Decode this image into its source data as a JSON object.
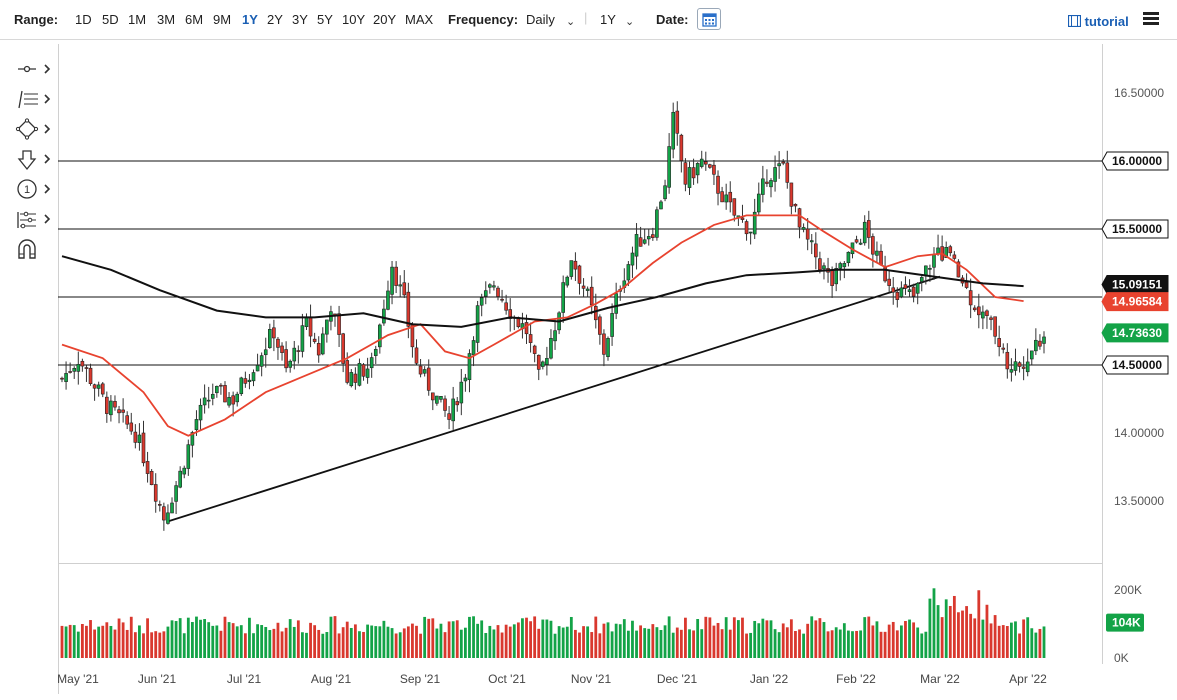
{
  "toolbar": {
    "range_label": "Range:",
    "ranges": [
      "1D",
      "5D",
      "1M",
      "3M",
      "6M",
      "9M",
      "1Y",
      "2Y",
      "3Y",
      "5Y",
      "10Y",
      "20Y",
      "MAX"
    ],
    "active_range": "1Y",
    "frequency_label": "Frequency:",
    "frequency_value": "Daily",
    "period_value": "1Y",
    "date_label": "Date:",
    "tutorial_label": "tutorial"
  },
  "tools": [
    "crosshair-tool-icon",
    "fibonacci-tool-icon",
    "shape-tool-icon",
    "arrow-tool-icon",
    "annotation-tool-icon",
    "measure-tool-icon",
    "magnet-tool-icon"
  ],
  "colors": {
    "up": "#13a347",
    "down": "#d9382e",
    "ma_short": "#e8432f",
    "ma_long": "#111111",
    "accent": "#1a5fb4"
  },
  "chart_data": {
    "type": "candlestick",
    "ylim": [
      13.2,
      16.7
    ],
    "y_ticks": [
      "16.50000",
      "16.00000",
      "15.50000",
      "14.00000",
      "13.50000"
    ],
    "x_ticks": [
      "May '21",
      "Jun '21",
      "Jul '21",
      "Aug '21",
      "Sep '21",
      "Oct '21",
      "Nov '21",
      "Dec '21",
      "Jan '22",
      "Feb '22",
      "Mar '22",
      "Apr '22"
    ],
    "horizontal_levels": [
      16.0,
      15.5,
      15.0,
      14.5
    ],
    "trendline": [
      [
        13.35,
        "Jun '21"
      ],
      [
        14.98,
        "Mar '22"
      ]
    ],
    "price_tags": [
      {
        "label": "16.00000",
        "value": 16.0,
        "style": "level"
      },
      {
        "label": "15.50000",
        "value": 15.5,
        "style": "level"
      },
      {
        "label": "15.09151",
        "value": 15.09151,
        "style": "ma_long"
      },
      {
        "label": "14.96584",
        "value": 14.96584,
        "style": "ma_short"
      },
      {
        "label": "14.73630",
        "value": 14.7363,
        "style": "last"
      },
      {
        "label": "14.50000",
        "value": 14.5,
        "style": "level"
      }
    ],
    "price_path": [
      [
        0,
        14.4
      ],
      [
        4,
        14.55
      ],
      [
        11,
        14.2
      ],
      [
        18,
        14.0
      ],
      [
        21,
        13.75
      ],
      [
        25,
        13.38
      ],
      [
        29,
        13.7
      ],
      [
        33,
        14.1
      ],
      [
        37,
        14.3
      ],
      [
        42,
        14.25
      ],
      [
        48,
        14.55
      ],
      [
        52,
        14.75
      ],
      [
        55,
        14.45
      ],
      [
        60,
        14.8
      ],
      [
        63,
        14.6
      ],
      [
        66,
        14.95
      ],
      [
        70,
        14.4
      ],
      [
        76,
        14.5
      ],
      [
        81,
        15.25
      ],
      [
        84,
        14.95
      ],
      [
        87,
        14.5
      ],
      [
        91,
        14.3
      ],
      [
        95,
        14.1
      ],
      [
        99,
        14.45
      ],
      [
        102,
        14.9
      ],
      [
        106,
        15.1
      ],
      [
        111,
        14.85
      ],
      [
        114,
        14.75
      ],
      [
        117,
        14.4
      ],
      [
        121,
        14.8
      ],
      [
        125,
        15.3
      ],
      [
        129,
        15.0
      ],
      [
        133,
        14.6
      ],
      [
        137,
        15.1
      ],
      [
        141,
        15.4
      ],
      [
        145,
        15.5
      ],
      [
        148,
        15.85
      ],
      [
        150,
        16.3
      ],
      [
        153,
        15.85
      ],
      [
        157,
        16.0
      ],
      [
        161,
        15.8
      ],
      [
        165,
        15.6
      ],
      [
        169,
        15.5
      ],
      [
        173,
        15.9
      ],
      [
        177,
        15.95
      ],
      [
        181,
        15.5
      ],
      [
        185,
        15.3
      ],
      [
        189,
        15.1
      ],
      [
        193,
        15.3
      ],
      [
        197,
        15.5
      ],
      [
        201,
        15.2
      ],
      [
        205,
        15.05
      ],
      [
        209,
        15.0
      ],
      [
        213,
        15.25
      ],
      [
        217,
        15.35
      ],
      [
        221,
        15.1
      ],
      [
        225,
        14.9
      ],
      [
        229,
        14.75
      ],
      [
        232,
        14.5
      ],
      [
        235,
        14.5
      ],
      [
        238,
        14.62
      ],
      [
        241,
        14.74
      ]
    ],
    "ma_short": [
      [
        0,
        14.65
      ],
      [
        10,
        14.55
      ],
      [
        20,
        14.3
      ],
      [
        26,
        14.05
      ],
      [
        31,
        13.98
      ],
      [
        40,
        14.1
      ],
      [
        50,
        14.3
      ],
      [
        58,
        14.4
      ],
      [
        70,
        14.55
      ],
      [
        80,
        14.72
      ],
      [
        88,
        14.8
      ],
      [
        94,
        14.6
      ],
      [
        100,
        14.55
      ],
      [
        106,
        14.65
      ],
      [
        116,
        14.82
      ],
      [
        124,
        14.85
      ],
      [
        131,
        14.95
      ],
      [
        137,
        15.05
      ],
      [
        145,
        15.25
      ],
      [
        152,
        15.4
      ],
      [
        160,
        15.53
      ],
      [
        168,
        15.6
      ],
      [
        176,
        15.6
      ],
      [
        181,
        15.6
      ],
      [
        187,
        15.48
      ],
      [
        194,
        15.35
      ],
      [
        202,
        15.22
      ],
      [
        210,
        15.3
      ],
      [
        216,
        15.32
      ],
      [
        222,
        15.2
      ],
      [
        229,
        15.0
      ],
      [
        236,
        14.97
      ]
    ],
    "ma_long": [
      [
        0,
        15.3
      ],
      [
        12,
        15.2
      ],
      [
        24,
        15.05
      ],
      [
        38,
        14.9
      ],
      [
        50,
        14.85
      ],
      [
        62,
        14.85
      ],
      [
        74,
        14.88
      ],
      [
        86,
        14.8
      ],
      [
        98,
        14.78
      ],
      [
        110,
        14.85
      ],
      [
        122,
        14.82
      ],
      [
        134,
        14.92
      ],
      [
        146,
        15.0
      ],
      [
        158,
        15.1
      ],
      [
        168,
        15.16
      ],
      [
        180,
        15.18
      ],
      [
        190,
        15.2
      ],
      [
        202,
        15.2
      ],
      [
        214,
        15.15
      ],
      [
        226,
        15.1
      ],
      [
        236,
        15.08
      ]
    ],
    "volume": {
      "ylim": [
        0,
        250000
      ],
      "y_ticks": [
        "200K",
        "0K"
      ],
      "last_label": "104K",
      "typical": 95000,
      "peak": 205000
    }
  }
}
